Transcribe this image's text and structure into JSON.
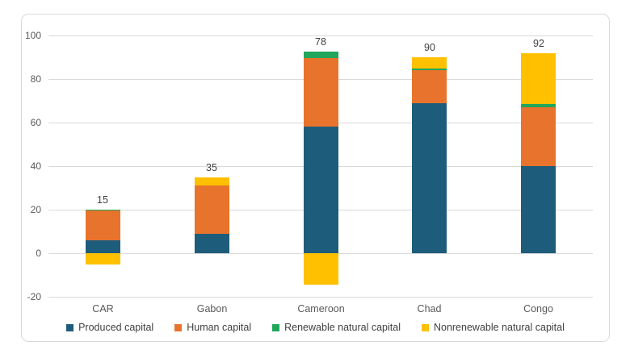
{
  "chart_data": {
    "type": "bar",
    "stacked": true,
    "title": "",
    "xlabel": "",
    "ylabel": "",
    "grid": true,
    "legend_position": "bottom",
    "ylim": [
      -20,
      100
    ],
    "yticks": [
      -20,
      0,
      20,
      40,
      60,
      80,
      100
    ],
    "categories": [
      "CAR",
      "Gabon",
      "Cameroon",
      "Chad",
      "Congo"
    ],
    "series": [
      {
        "name": "Produced capital",
        "color": "#1E5C7B",
        "values": [
          6,
          9,
          58,
          69,
          40
        ]
      },
      {
        "name": "Human capital",
        "color": "#E8732C",
        "values": [
          13.5,
          22,
          31.5,
          15,
          27
        ]
      },
      {
        "name": "Renewable natural capital",
        "color": "#21A65B",
        "values": [
          0.5,
          0,
          3,
          1,
          1.5
        ]
      },
      {
        "name": "Nonrenewable natural capital",
        "color": "#FFC000",
        "values": [
          -5,
          4,
          -14.5,
          5,
          23.5
        ]
      }
    ],
    "data_labels": [
      15,
      35,
      78,
      90,
      92
    ]
  },
  "style": {
    "gridline_color": "#D9D9D9",
    "axis_text_color": "#595959",
    "label_text_color": "#404040",
    "background": "#ffffff"
  }
}
